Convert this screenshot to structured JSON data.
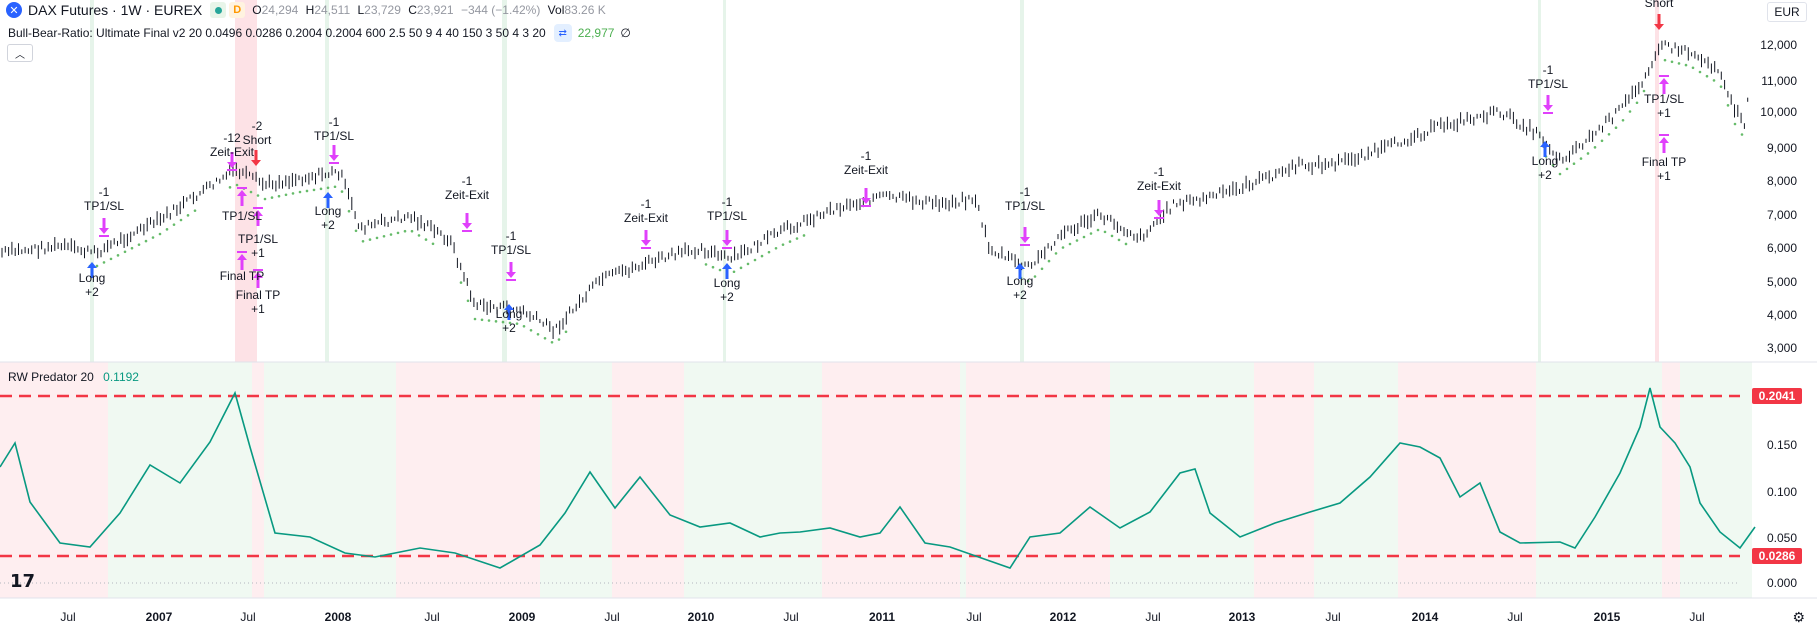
{
  "header": {
    "symbol_icon": "x-icon",
    "title": "DAX Futures · 1W · EUREX",
    "badge_d": "D",
    "ohlc": [
      {
        "k": "O",
        "v": "24,294"
      },
      {
        "k": "H",
        "v": "24,511"
      },
      {
        "k": "L",
        "v": "23,729"
      },
      {
        "k": "C",
        "v": "23,921"
      },
      {
        "k": "",
        "v": "−344 (−1.42%)"
      },
      {
        "k": "Vol",
        "v": "83.26 K"
      }
    ]
  },
  "indicator1": {
    "name": "Bull-Bear-Ratio: Ultimate Final v2 20 0.0496 0.0286 0.2004 0.2004 600 2.5 50 9 4 40 150 3 50 4 3 20",
    "value": "22,977",
    "suffix": "∅"
  },
  "indicator2": {
    "name": "RW Predator 20",
    "value": "0.1192"
  },
  "currency": "EUR",
  "price_axis": [
    "12,000",
    "11,000",
    "10,000",
    "9,000",
    "8,000",
    "7,000",
    "6,000",
    "5,000",
    "4,000",
    "3,000"
  ],
  "osc_axis": [
    "0.150",
    "0.100",
    "0.050",
    "0.000"
  ],
  "osc_badges": {
    "upper": "0.2041",
    "lower": "0.0286"
  },
  "time_axis": [
    "Jul",
    "2007",
    "Jul",
    "2008",
    "Jul",
    "2009",
    "Jul",
    "2010",
    "Jul",
    "2011",
    "Jul",
    "2012",
    "Jul",
    "2013",
    "Jul",
    "2014",
    "Jul",
    "2015",
    "Jul"
  ],
  "annotations": [
    {
      "lines": [
        "-1",
        "TP1/SL"
      ]
    },
    {
      "lines": [
        "Long",
        "+2"
      ]
    },
    {
      "lines": [
        "-12",
        "Zeit-Exit"
      ]
    },
    {
      "lines": [
        "-2",
        "Short"
      ]
    },
    {
      "lines": [
        "TP1/SL"
      ]
    },
    {
      "lines": [
        "TP1/SL",
        "+1"
      ]
    },
    {
      "lines": [
        "Final TP"
      ]
    },
    {
      "lines": [
        "Final TP",
        "+1"
      ]
    },
    {
      "lines": [
        "-1",
        "TP1/SL"
      ]
    },
    {
      "lines": [
        "Long",
        "+2"
      ]
    },
    {
      "lines": [
        "-1",
        "Zeit-Exit"
      ]
    },
    {
      "lines": [
        "-1",
        "TP1/SL"
      ]
    },
    {
      "lines": [
        "Long",
        "+2"
      ]
    },
    {
      "lines": [
        "-1",
        "Zeit-Exit"
      ]
    },
    {
      "lines": [
        "-1",
        "TP1/SL"
      ]
    },
    {
      "lines": [
        "Long",
        "+2"
      ]
    },
    {
      "lines": [
        "-1",
        "Zeit-Exit"
      ]
    },
    {
      "lines": [
        "-1",
        "TP1/SL"
      ]
    },
    {
      "lines": [
        "Long",
        "+2"
      ]
    },
    {
      "lines": [
        "-1",
        "Zeit-Exit"
      ]
    },
    {
      "lines": [
        "-1",
        "TP1/SL"
      ]
    },
    {
      "lines": [
        "Long",
        "+2"
      ]
    },
    {
      "lines": [
        "Short"
      ]
    },
    {
      "lines": [
        "TP1/SL",
        "+1"
      ]
    },
    {
      "lines": [
        "Final TP",
        "+1"
      ]
    }
  ],
  "colors": {
    "long": "#2962ff",
    "short": "#f23645",
    "exit": "#e040fb",
    "osc": "#089981",
    "band": "#f23645"
  },
  "icons": {
    "logo": "tradingview-logo",
    "settings": "gear-icon",
    "toggle": "chevron-up-icon",
    "eye": "visibility-icon"
  }
}
